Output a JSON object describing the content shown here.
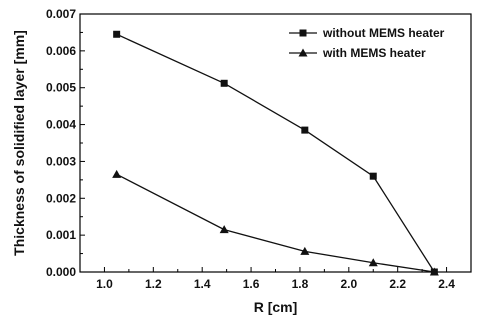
{
  "chart_data": {
    "type": "line",
    "xlabel": "R [cm]",
    "ylabel": "Thickness of solidified layer [mm]",
    "xlim": [
      0.9,
      2.5
    ],
    "ylim": [
      0.0,
      0.007
    ],
    "xticks": [
      1.0,
      1.2,
      1.4,
      1.6,
      1.8,
      2.0,
      2.2,
      2.4
    ],
    "xtick_labels": [
      "1.0",
      "1.2",
      "1.4",
      "1.6",
      "1.8",
      "2.0",
      "2.2",
      "2.4"
    ],
    "yticks": [
      0.0,
      0.001,
      0.002,
      0.003,
      0.004,
      0.005,
      0.006,
      0.007
    ],
    "ytick_labels": [
      "0.000",
      "0.001",
      "0.002",
      "0.003",
      "0.004",
      "0.005",
      "0.006",
      "0.007"
    ],
    "legend_position": "top-right",
    "grid": false,
    "series": [
      {
        "name": "without MEMS heater",
        "marker": "square",
        "x": [
          1.05,
          1.49,
          1.82,
          2.1,
          2.35
        ],
        "y": [
          0.00645,
          0.00512,
          0.00385,
          0.0026,
          0.0
        ]
      },
      {
        "name": "with MEMS heater",
        "marker": "triangle",
        "x": [
          1.05,
          1.49,
          1.82,
          2.1,
          2.35
        ],
        "y": [
          0.00265,
          0.00115,
          0.00056,
          0.00025,
          0.0
        ]
      }
    ]
  }
}
